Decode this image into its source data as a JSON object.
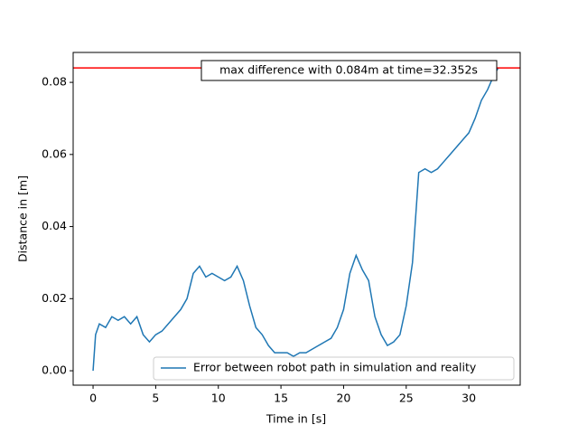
{
  "chart_data": {
    "type": "line",
    "xlabel": "Time in [s]",
    "ylabel": "Distance in [m]",
    "x": [
      0,
      0.2,
      0.5,
      1,
      1.5,
      2,
      2.5,
      3,
      3.5,
      4,
      4.5,
      5,
      5.5,
      6,
      6.5,
      7,
      7.5,
      8,
      8.5,
      9,
      9.5,
      10,
      10.5,
      11,
      11.5,
      12,
      12.5,
      13,
      13.5,
      14,
      14.5,
      15,
      15.5,
      16,
      16.5,
      17,
      17.5,
      18,
      18.5,
      19,
      19.5,
      20,
      20.5,
      21,
      21.5,
      22,
      22.5,
      23,
      23.5,
      24,
      24.5,
      25,
      25.5,
      26,
      26.5,
      27,
      27.5,
      28,
      28.5,
      29,
      29.5,
      30,
      30.5,
      31,
      31.5,
      32,
      32.352
    ],
    "series": [
      {
        "name": "Error between robot path in simulation and reality",
        "color": "#1f77b4",
        "values": [
          0,
          0.01,
          0.013,
          0.012,
          0.015,
          0.014,
          0.015,
          0.013,
          0.015,
          0.01,
          0.008,
          0.01,
          0.011,
          0.013,
          0.015,
          0.017,
          0.02,
          0.027,
          0.029,
          0.026,
          0.027,
          0.026,
          0.025,
          0.026,
          0.029,
          0.025,
          0.018,
          0.012,
          0.01,
          0.007,
          0.005,
          0.005,
          0.005,
          0.004,
          0.005,
          0.005,
          0.006,
          0.007,
          0.008,
          0.009,
          0.012,
          0.017,
          0.027,
          0.032,
          0.028,
          0.025,
          0.015,
          0.01,
          0.007,
          0.008,
          0.01,
          0.018,
          0.03,
          0.055,
          0.056,
          0.055,
          0.056,
          0.058,
          0.06,
          0.062,
          0.064,
          0.066,
          0.07,
          0.075,
          0.078,
          0.082,
          0.084
        ]
      }
    ],
    "hline": {
      "value": 0.084,
      "color": "#ff0000"
    },
    "annotation": "max difference with 0.084m at time=32.352s",
    "xlim": [
      -1.59,
      34.1
    ],
    "ylim": [
      -0.004,
      0.0883
    ],
    "xticks": [
      0,
      5,
      10,
      15,
      20,
      25,
      30
    ],
    "yticks": [
      {
        "value": 0,
        "label": "0.00"
      },
      0.02,
      0.04,
      0.06,
      0.08
    ],
    "legend": "lower right"
  }
}
